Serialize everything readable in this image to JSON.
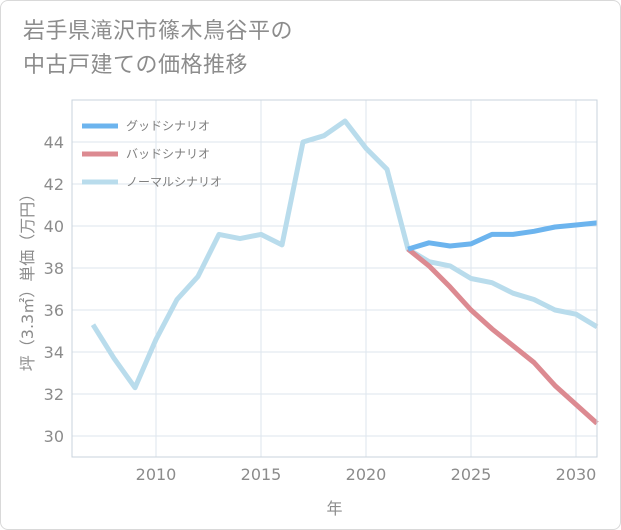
{
  "title_line1": "岩手県滝沢市篠木鳥谷平の",
  "title_line2": "中古戸建ての価格推移",
  "chart_data": {
    "type": "line",
    "xlabel": "年",
    "ylabel": "坪（3.3㎡）単価（万円）",
    "xlim": [
      2006,
      2031
    ],
    "ylim": [
      29,
      46
    ],
    "xticks": [
      2010,
      2015,
      2020,
      2025,
      2030
    ],
    "yticks": [
      30,
      32,
      34,
      36,
      38,
      40,
      42,
      44
    ],
    "legend_position": "top-left",
    "series": [
      {
        "name": "グッドシナリオ",
        "color": "#6cb4ee",
        "x": [
          2022,
          2023,
          2024,
          2025,
          2026,
          2027,
          2028,
          2029,
          2030,
          2031
        ],
        "values": [
          38.9,
          39.2,
          39.05,
          39.15,
          39.6,
          39.6,
          39.75,
          39.95,
          40.05,
          40.15
        ]
      },
      {
        "name": "バッドシナリオ",
        "color": "#dc8a91",
        "x": [
          2022,
          2023,
          2024,
          2025,
          2026,
          2027,
          2028,
          2029,
          2030,
          2031
        ],
        "values": [
          38.9,
          38.1,
          37.1,
          36.0,
          35.1,
          34.3,
          33.5,
          32.4,
          31.5,
          30.6
        ]
      },
      {
        "name": "ノーマルシナリオ",
        "color": "#b9dcec",
        "x": [
          2007,
          2008,
          2009,
          2010,
          2011,
          2012,
          2013,
          2014,
          2015,
          2016,
          2017,
          2018,
          2019,
          2020,
          2021,
          2022,
          2023,
          2024,
          2025,
          2026,
          2027,
          2028,
          2029,
          2030,
          2031
        ],
        "values": [
          35.3,
          33.7,
          32.3,
          34.6,
          36.5,
          37.6,
          39.6,
          39.4,
          39.6,
          39.1,
          44.0,
          44.3,
          45.0,
          43.7,
          42.7,
          38.9,
          38.3,
          38.1,
          37.5,
          37.3,
          36.8,
          36.5,
          36.0,
          35.8,
          35.2
        ]
      }
    ]
  }
}
